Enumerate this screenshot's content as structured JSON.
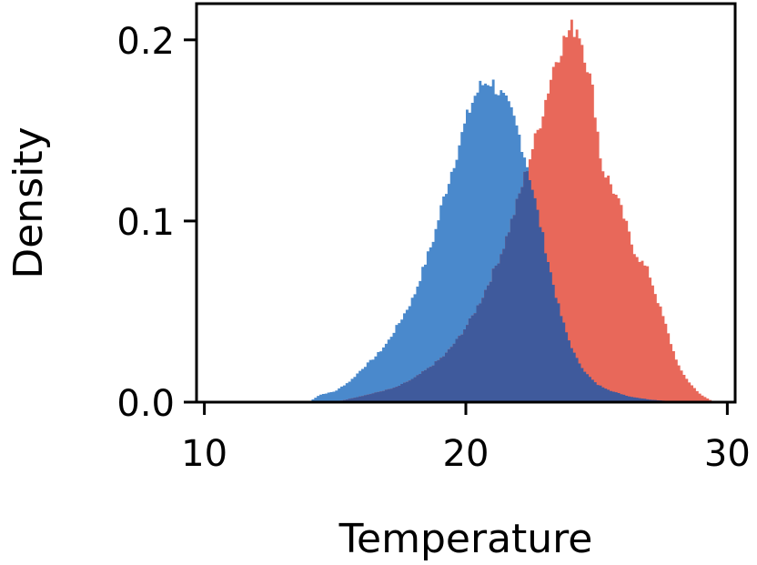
{
  "chart_data": {
    "type": "histogram",
    "title": "",
    "xlabel": "Temperature",
    "ylabel": "Density",
    "xlim": [
      9.7,
      30.3
    ],
    "ylim": [
      0,
      0.22
    ],
    "xticks": [
      10,
      20,
      30
    ],
    "xtick_labels": [
      "10",
      "20",
      "30"
    ],
    "yticks": [
      0.0,
      0.1,
      0.2
    ],
    "ytick_labels": [
      "0.0",
      "0.1",
      "0.2"
    ],
    "grid": false,
    "legend": "none",
    "overlap_color": "#3f5a9c",
    "series": [
      {
        "color": "#4a89cc",
        "points": [
          [
            14,
            0
          ],
          [
            14.4,
            0.004
          ],
          [
            15,
            0.006
          ],
          [
            15.6,
            0.012
          ],
          [
            16,
            0.018
          ],
          [
            16.6,
            0.026
          ],
          [
            17,
            0.033
          ],
          [
            17.5,
            0.045
          ],
          [
            18,
            0.058
          ],
          [
            18.4,
            0.075
          ],
          [
            18.8,
            0.092
          ],
          [
            19.1,
            0.11
          ],
          [
            19.4,
            0.125
          ],
          [
            19.7,
            0.14
          ],
          [
            20,
            0.155
          ],
          [
            20.3,
            0.168
          ],
          [
            20.6,
            0.175
          ],
          [
            20.9,
            0.178
          ],
          [
            21.2,
            0.173
          ],
          [
            21.5,
            0.166
          ],
          [
            21.8,
            0.158
          ],
          [
            22.1,
            0.145
          ],
          [
            22.4,
            0.128
          ],
          [
            22.7,
            0.108
          ],
          [
            23,
            0.088
          ],
          [
            23.3,
            0.068
          ],
          [
            23.6,
            0.05
          ],
          [
            23.9,
            0.036
          ],
          [
            24.2,
            0.025
          ],
          [
            24.6,
            0.016
          ],
          [
            25,
            0.01
          ],
          [
            25.6,
            0.006
          ],
          [
            26.3,
            0.003
          ],
          [
            27,
            0.0015
          ],
          [
            27.8,
            0.0005
          ],
          [
            28.4,
            0
          ]
        ]
      },
      {
        "color": "#e8685a",
        "points": [
          [
            15,
            0
          ],
          [
            15.6,
            0.002
          ],
          [
            16.5,
            0.005
          ],
          [
            17.3,
            0.008
          ],
          [
            18,
            0.013
          ],
          [
            18.6,
            0.019
          ],
          [
            19.2,
            0.026
          ],
          [
            19.7,
            0.035
          ],
          [
            20.2,
            0.046
          ],
          [
            20.6,
            0.057
          ],
          [
            21,
            0.07
          ],
          [
            21.4,
            0.084
          ],
          [
            21.8,
            0.102
          ],
          [
            22.2,
            0.122
          ],
          [
            22.5,
            0.138
          ],
          [
            22.8,
            0.152
          ],
          [
            23.1,
            0.17
          ],
          [
            23.4,
            0.188
          ],
          [
            23.7,
            0.198
          ],
          [
            24,
            0.206
          ],
          [
            24.3,
            0.207
          ],
          [
            24.6,
            0.19
          ],
          [
            24.9,
            0.168
          ],
          [
            25.2,
            0.13
          ],
          [
            25.5,
            0.122
          ],
          [
            25.8,
            0.112
          ],
          [
            26.1,
            0.1
          ],
          [
            26.4,
            0.085
          ],
          [
            26.7,
            0.078
          ],
          [
            27,
            0.072
          ],
          [
            27.3,
            0.058
          ],
          [
            27.6,
            0.045
          ],
          [
            27.9,
            0.03
          ],
          [
            28.2,
            0.018
          ],
          [
            28.6,
            0.01
          ],
          [
            29,
            0.004
          ],
          [
            29.5,
            0
          ]
        ]
      }
    ]
  }
}
